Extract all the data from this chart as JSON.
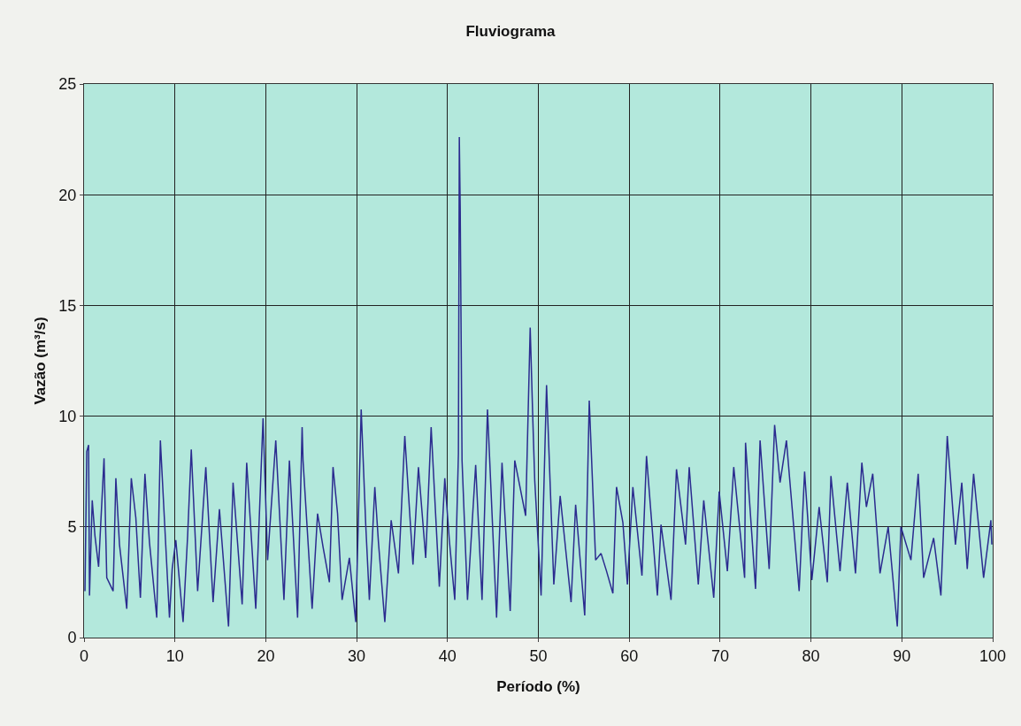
{
  "chart_data": {
    "type": "line",
    "title": "Fluviograma",
    "xlabel": "Período (%)",
    "ylabel": "Vazão (m³/s)",
    "x": [
      0.1,
      0.3,
      0.5,
      0.6,
      0.9,
      1.2,
      1.6,
      2.2,
      2.5,
      3.2,
      3.5,
      3.9,
      4.7,
      5.2,
      5.7,
      6.2,
      6.7,
      7.2,
      8.0,
      8.4,
      9.4,
      9.7,
      10.1,
      10.9,
      11.4,
      11.8,
      12.5,
      13.4,
      14.2,
      14.9,
      15.9,
      16.4,
      17.4,
      17.9,
      18.9,
      19.7,
      20.2,
      21.1,
      22.0,
      22.6,
      23.5,
      24.0,
      24.1,
      25.1,
      25.7,
      26.3,
      27.0,
      27.4,
      27.9,
      28.4,
      29.2,
      29.9,
      30.5,
      31.0,
      31.4,
      32.0,
      32.4,
      33.1,
      33.8,
      34.6,
      35.3,
      36.2,
      36.8,
      37.6,
      38.2,
      39.1,
      39.7,
      40.2,
      40.8,
      41.2,
      41.3,
      41.4,
      41.6,
      42.2,
      43.1,
      43.8,
      44.4,
      45.4,
      46.0,
      46.9,
      47.4,
      48.6,
      49.1,
      49.4,
      49.6,
      50.3,
      50.9,
      51.7,
      52.4,
      53.6,
      54.1,
      55.1,
      55.6,
      56.3,
      56.9,
      57.5,
      58.2,
      58.6,
      59.3,
      59.8,
      60.4,
      61.4,
      61.9,
      63.1,
      63.5,
      64.6,
      65.2,
      66.2,
      66.6,
      67.6,
      68.2,
      69.3,
      69.9,
      70.8,
      71.5,
      72.7,
      72.8,
      73.9,
      74.4,
      75.4,
      76.0,
      76.6,
      77.3,
      78.7,
      79.3,
      80.1,
      80.9,
      81.8,
      82.2,
      83.2,
      84.0,
      84.9,
      85.6,
      86.1,
      86.8,
      87.6,
      88.5,
      89.5,
      89.9,
      91.0,
      91.8,
      92.4,
      93.5,
      94.3,
      95.0,
      95.9,
      96.6,
      97.2,
      97.9,
      99.0,
      99.8,
      99.9
    ],
    "series": [
      {
        "color": "#2b2b8f",
        "values": [
          2.1,
          8.4,
          8.7,
          1.9,
          6.2,
          4.6,
          3.2,
          8.1,
          2.7,
          2.1,
          7.2,
          4.2,
          1.3,
          7.2,
          5.4,
          1.8,
          7.4,
          4.3,
          0.9,
          8.9,
          0.9,
          3.1,
          4.4,
          0.7,
          4.6,
          8.5,
          2.1,
          7.7,
          1.6,
          5.8,
          0.5,
          7.0,
          1.5,
          7.9,
          1.3,
          9.9,
          3.5,
          8.9,
          1.7,
          8.0,
          0.9,
          9.5,
          8.0,
          1.3,
          5.6,
          4.1,
          2.5,
          7.7,
          5.6,
          1.7,
          3.6,
          0.7,
          10.3,
          5.1,
          1.7,
          6.8,
          4.3,
          0.7,
          5.3,
          2.9,
          9.1,
          3.3,
          7.7,
          3.6,
          9.5,
          2.3,
          7.2,
          4.4,
          1.7,
          8.3,
          22.6,
          19.3,
          8.0,
          1.7,
          7.8,
          1.7,
          10.3,
          0.9,
          7.9,
          1.2,
          8.0,
          5.5,
          14.0,
          9.7,
          7.1,
          1.9,
          11.4,
          2.4,
          6.4,
          1.6,
          6.0,
          1.0,
          10.7,
          3.5,
          3.8,
          3.0,
          2.0,
          6.8,
          5.2,
          2.4,
          6.8,
          2.8,
          8.2,
          1.9,
          5.1,
          1.7,
          7.6,
          4.2,
          7.7,
          2.4,
          6.2,
          1.8,
          6.6,
          3.0,
          7.7,
          2.7,
          8.8,
          2.2,
          8.9,
          3.1,
          9.6,
          7.0,
          8.9,
          2.1,
          7.5,
          2.6,
          5.9,
          2.5,
          7.3,
          3.0,
          7.0,
          2.9,
          7.9,
          5.9,
          7.4,
          2.9,
          5.0,
          0.5,
          5.0,
          3.5,
          7.4,
          2.7,
          4.5,
          1.9,
          9.1,
          4.2,
          7.0,
          3.1,
          7.4,
          2.7,
          5.3,
          4.2
        ]
      }
    ],
    "xlim": [
      0,
      100
    ],
    "ylim": [
      0,
      25
    ],
    "xticks": [
      0,
      10,
      20,
      30,
      40,
      50,
      60,
      70,
      80,
      90,
      100
    ],
    "yticks": [
      0,
      5,
      10,
      15,
      20,
      25
    ],
    "grid": true,
    "marker": "none",
    "line_style": "solid"
  }
}
